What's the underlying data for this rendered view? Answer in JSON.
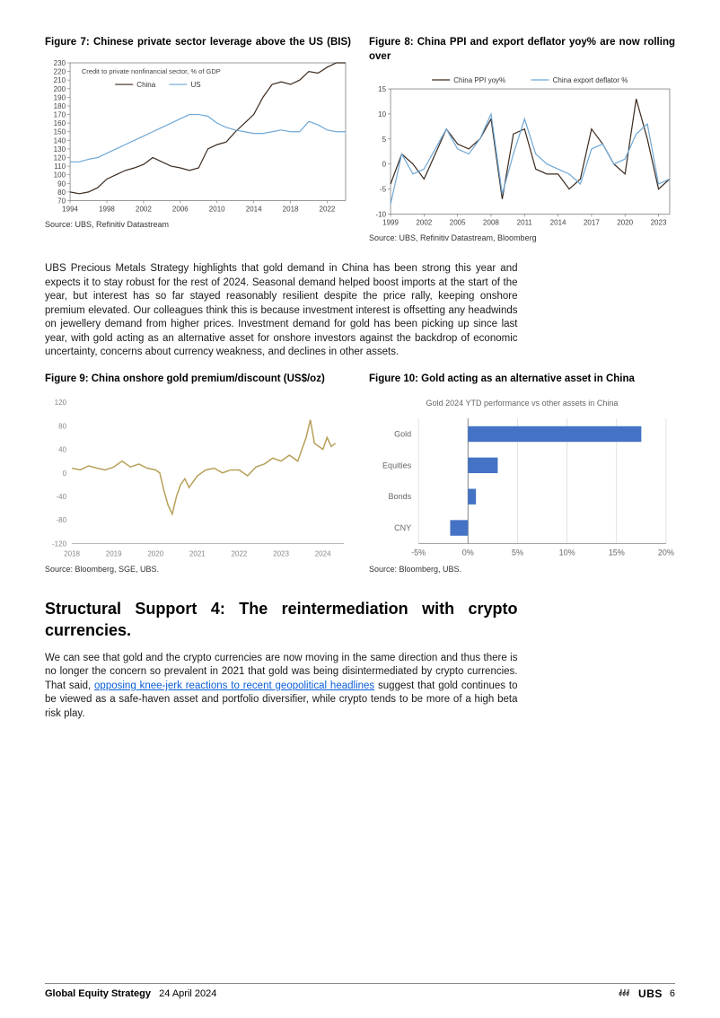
{
  "figures": {
    "fig7": {
      "title": "Figure 7: Chinese private sector leverage above the US (BIS)",
      "type": "line",
      "legend_text": "Credit to private nonfinancial sector, % of GDP",
      "series": [
        {
          "name": "China",
          "color": "#3b2a1e"
        },
        {
          "name": "US",
          "color": "#6fa8d6"
        }
      ],
      "x_ticks": [
        "1994",
        "1998",
        "2002",
        "2006",
        "2010",
        "2014",
        "2018",
        "2022"
      ],
      "y_ticks": [
        70,
        80,
        90,
        100,
        110,
        120,
        130,
        140,
        150,
        160,
        170,
        180,
        190,
        200,
        210,
        220,
        230
      ],
      "ylim": [
        70,
        230
      ],
      "china_path": [
        [
          1994,
          80
        ],
        [
          1995,
          78
        ],
        [
          1996,
          80
        ],
        [
          1997,
          85
        ],
        [
          1998,
          95
        ],
        [
          1999,
          100
        ],
        [
          2000,
          105
        ],
        [
          2001,
          108
        ],
        [
          2002,
          112
        ],
        [
          2003,
          120
        ],
        [
          2004,
          115
        ],
        [
          2005,
          110
        ],
        [
          2006,
          108
        ],
        [
          2007,
          105
        ],
        [
          2008,
          108
        ],
        [
          2009,
          130
        ],
        [
          2010,
          135
        ],
        [
          2011,
          138
        ],
        [
          2012,
          150
        ],
        [
          2013,
          160
        ],
        [
          2014,
          170
        ],
        [
          2015,
          190
        ],
        [
          2016,
          205
        ],
        [
          2017,
          208
        ],
        [
          2018,
          205
        ],
        [
          2019,
          210
        ],
        [
          2020,
          220
        ],
        [
          2021,
          218
        ],
        [
          2022,
          225
        ],
        [
          2023,
          230
        ],
        [
          2024,
          230
        ]
      ],
      "us_path": [
        [
          1994,
          115
        ],
        [
          1995,
          115
        ],
        [
          1996,
          118
        ],
        [
          1997,
          120
        ],
        [
          1998,
          125
        ],
        [
          1999,
          130
        ],
        [
          2000,
          135
        ],
        [
          2001,
          140
        ],
        [
          2002,
          145
        ],
        [
          2003,
          150
        ],
        [
          2004,
          155
        ],
        [
          2005,
          160
        ],
        [
          2006,
          165
        ],
        [
          2007,
          170
        ],
        [
          2008,
          170
        ],
        [
          2009,
          168
        ],
        [
          2010,
          160
        ],
        [
          2011,
          155
        ],
        [
          2012,
          152
        ],
        [
          2013,
          150
        ],
        [
          2014,
          148
        ],
        [
          2015,
          148
        ],
        [
          2016,
          150
        ],
        [
          2017,
          152
        ],
        [
          2018,
          150
        ],
        [
          2019,
          150
        ],
        [
          2020,
          162
        ],
        [
          2021,
          158
        ],
        [
          2022,
          152
        ],
        [
          2023,
          150
        ],
        [
          2024,
          150
        ]
      ],
      "axis_color": "#808080",
      "grid_color": "#e0e0e0",
      "label_fontsize": 8,
      "source": "Source: UBS, Refinitiv Datastream"
    },
    "fig8": {
      "title": "Figure 8: China PPI and export deflator yoy% are now rolling over",
      "type": "line",
      "series": [
        {
          "name": "China PPI yoy%",
          "color": "#3b2a1e"
        },
        {
          "name": "China export deflator %",
          "color": "#6fa8d6"
        }
      ],
      "x_ticks": [
        "1999",
        "2002",
        "2005",
        "2008",
        "2011",
        "2014",
        "2017",
        "2020",
        "2023"
      ],
      "y_ticks": [
        -10,
        -5,
        0,
        5,
        10,
        15
      ],
      "ylim": [
        -10,
        15
      ],
      "ppi_path": [
        [
          1999,
          -4
        ],
        [
          2000,
          2
        ],
        [
          2001,
          0
        ],
        [
          2002,
          -3
        ],
        [
          2003,
          2
        ],
        [
          2004,
          7
        ],
        [
          2005,
          4
        ],
        [
          2006,
          3
        ],
        [
          2007,
          5
        ],
        [
          2008,
          9
        ],
        [
          2009,
          -7
        ],
        [
          2010,
          6
        ],
        [
          2011,
          7
        ],
        [
          2012,
          -1
        ],
        [
          2013,
          -2
        ],
        [
          2014,
          -2
        ],
        [
          2015,
          -5
        ],
        [
          2016,
          -3
        ],
        [
          2017,
          7
        ],
        [
          2018,
          4
        ],
        [
          2019,
          0
        ],
        [
          2020,
          -2
        ],
        [
          2021,
          13
        ],
        [
          2022,
          5
        ],
        [
          2023,
          -5
        ],
        [
          2024,
          -3
        ]
      ],
      "deflator_path": [
        [
          1999,
          -8
        ],
        [
          2000,
          2
        ],
        [
          2001,
          -2
        ],
        [
          2002,
          -1
        ],
        [
          2003,
          3
        ],
        [
          2004,
          7
        ],
        [
          2005,
          3
        ],
        [
          2006,
          2
        ],
        [
          2007,
          5
        ],
        [
          2008,
          10
        ],
        [
          2009,
          -6
        ],
        [
          2010,
          2
        ],
        [
          2011,
          9
        ],
        [
          2012,
          2
        ],
        [
          2013,
          0
        ],
        [
          2014,
          -1
        ],
        [
          2015,
          -2
        ],
        [
          2016,
          -4
        ],
        [
          2017,
          3
        ],
        [
          2018,
          4
        ],
        [
          2019,
          0
        ],
        [
          2020,
          1
        ],
        [
          2021,
          6
        ],
        [
          2022,
          8
        ],
        [
          2023,
          -4
        ],
        [
          2024,
          -3
        ]
      ],
      "axis_color": "#808080",
      "label_fontsize": 8,
      "source": "Source: UBS, Refinitiv Datastream, Bloomberg"
    },
    "fig9": {
      "title": "Figure 9: China onshore gold premium/discount (US$/oz)",
      "type": "line",
      "series_color": "#b8a05a",
      "x_ticks": [
        "2018",
        "2019",
        "2020",
        "2021",
        "2022",
        "2023",
        "2024"
      ],
      "y_ticks": [
        -120,
        -80,
        -40,
        0,
        40,
        80,
        120
      ],
      "ylim": [
        -120,
        120
      ],
      "data_path": [
        [
          2018.0,
          8
        ],
        [
          2018.2,
          5
        ],
        [
          2018.4,
          12
        ],
        [
          2018.6,
          8
        ],
        [
          2018.8,
          5
        ],
        [
          2019.0,
          10
        ],
        [
          2019.2,
          20
        ],
        [
          2019.4,
          10
        ],
        [
          2019.6,
          15
        ],
        [
          2019.8,
          8
        ],
        [
          2020.0,
          5
        ],
        [
          2020.1,
          0
        ],
        [
          2020.2,
          -30
        ],
        [
          2020.3,
          -55
        ],
        [
          2020.4,
          -70
        ],
        [
          2020.5,
          -40
        ],
        [
          2020.6,
          -20
        ],
        [
          2020.7,
          -10
        ],
        [
          2020.8,
          -25
        ],
        [
          2020.9,
          -15
        ],
        [
          2021.0,
          -5
        ],
        [
          2021.2,
          5
        ],
        [
          2021.4,
          8
        ],
        [
          2021.6,
          0
        ],
        [
          2021.8,
          5
        ],
        [
          2022.0,
          5
        ],
        [
          2022.2,
          -5
        ],
        [
          2022.4,
          10
        ],
        [
          2022.6,
          15
        ],
        [
          2022.8,
          25
        ],
        [
          2023.0,
          20
        ],
        [
          2023.2,
          30
        ],
        [
          2023.4,
          20
        ],
        [
          2023.5,
          40
        ],
        [
          2023.6,
          60
        ],
        [
          2023.7,
          90
        ],
        [
          2023.8,
          50
        ],
        [
          2023.9,
          45
        ],
        [
          2024.0,
          40
        ],
        [
          2024.1,
          60
        ],
        [
          2024.2,
          45
        ],
        [
          2024.3,
          50
        ]
      ],
      "axis_color": "#a0a0a0",
      "label_fontsize": 8,
      "source": "Source: Bloomberg, SGE, UBS."
    },
    "fig10": {
      "title": "Figure 10: Gold acting as an alternative asset in China",
      "subtitle": "Gold 2024 YTD performance vs other assets in China",
      "type": "bar",
      "bar_color": "#4472c4",
      "categories": [
        "Gold",
        "Equities",
        "Bonds",
        "CNY"
      ],
      "values": [
        17.5,
        3.0,
        0.8,
        -1.8
      ],
      "x_ticks": [
        "-5%",
        "0%",
        "5%",
        "10%",
        "15%",
        "20%"
      ],
      "xlim": [
        -5,
        20
      ],
      "axis_color": "#a0a0a0",
      "grid_color": "#d0d0d0",
      "label_fontsize": 9,
      "source": "Source: Bloomberg, UBS."
    }
  },
  "paragraphs": {
    "p1": "UBS Precious Metals Strategy highlights that gold demand in China has been strong this year and expects it to stay robust for the rest of 2024. Seasonal demand helped boost imports at the start of the year, but interest has so far stayed reasonably resilient despite the price rally, keeping onshore premium elevated. Our colleagues think this is because investment interest is offsetting any headwinds on jewellery demand from higher prices. Investment demand for gold has been picking up since last year, with gold acting as an alternative asset for onshore investors against the backdrop of economic uncertainty, concerns about currency weakness, and declines in other assets.",
    "p2_a": "We can see that gold and the crypto currencies are now moving in the same direction and thus there is no longer the concern so prevalent in 2021 that gold was being disintermediated by crypto currencies. That said, ",
    "p2_link": "opposing knee-jerk reactions to recent geopolitical headlines",
    "p2_b": " suggest that gold continues to be viewed as a safe-haven asset and portfolio diversifier, while crypto tends to be more of a high beta risk play."
  },
  "section": {
    "title": "Structural Support 4: The reintermediation with crypto currencies."
  },
  "footer": {
    "title": "Global Equity Strategy",
    "date": "24 April 2024",
    "brand": "UBS",
    "page": "6"
  },
  "colors": {
    "text": "#000000",
    "link": "#0b5ed7",
    "background": "#ffffff"
  }
}
